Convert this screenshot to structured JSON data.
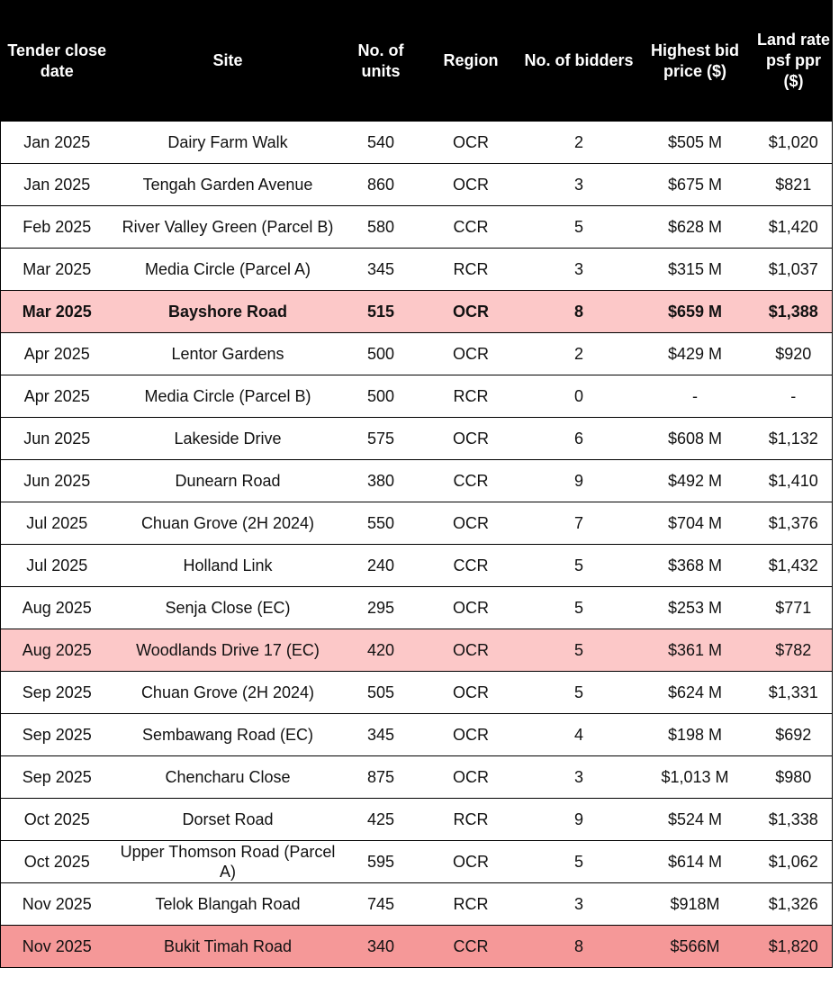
{
  "table": {
    "columns": [
      "Tender close date",
      "Site",
      "No. of units",
      "Region",
      "No. of bidders",
      "Highest bid price ($)",
      "Land rate psf ppr ($)"
    ],
    "rows": [
      [
        "Jan 2025",
        "Dairy Farm Walk",
        "540",
        "OCR",
        "2",
        "$505 M",
        "$1,020"
      ],
      [
        "Jan 2025",
        "Tengah Garden Avenue",
        "860",
        "OCR",
        "3",
        "$675 M",
        "$821"
      ],
      [
        "Feb 2025",
        "River Valley Green (Parcel B)",
        "580",
        "CCR",
        "5",
        "$628 M",
        "$1,420"
      ],
      [
        "Mar 2025",
        "Media Circle (Parcel A)",
        "345",
        "RCR",
        "3",
        "$315 M",
        "$1,037"
      ],
      [
        "Mar 2025",
        "Bayshore Road",
        "515",
        "OCR",
        "8",
        "$659 M",
        "$1,388"
      ],
      [
        "Apr 2025",
        "Lentor Gardens",
        "500",
        "OCR",
        "2",
        "$429 M",
        "$920"
      ],
      [
        "Apr 2025",
        "Media Circle (Parcel B)",
        "500",
        "RCR",
        "0",
        "-",
        "-"
      ],
      [
        "Jun 2025",
        "Lakeside Drive",
        "575",
        "OCR",
        "6",
        "$608 M",
        "$1,132"
      ],
      [
        "Jun 2025",
        "Dunearn Road",
        "380",
        "CCR",
        "9",
        "$492 M",
        "$1,410"
      ],
      [
        "Jul 2025",
        "Chuan Grove (2H 2024)",
        "550",
        "OCR",
        "7",
        "$704 M",
        "$1,376"
      ],
      [
        "Jul 2025",
        "Holland Link",
        "240",
        "CCR",
        "5",
        "$368 M",
        "$1,432"
      ],
      [
        "Aug 2025",
        "Senja Close (EC)",
        "295",
        "OCR",
        "5",
        "$253 M",
        "$771"
      ],
      [
        "Aug 2025",
        "Woodlands Drive 17 (EC)",
        "420",
        "OCR",
        "5",
        "$361 M",
        "$782"
      ],
      [
        "Sep 2025",
        "Chuan Grove (2H 2024)",
        "505",
        "OCR",
        "5",
        "$624 M",
        "$1,331"
      ],
      [
        "Sep 2025",
        "Sembawang Road (EC)",
        "345",
        "OCR",
        "4",
        "$198 M",
        "$692"
      ],
      [
        "Sep 2025",
        "Chencharu Close",
        "875",
        "OCR",
        "3",
        "$1,013 M",
        "$980"
      ],
      [
        "Oct 2025",
        "Dorset Road",
        "425",
        "RCR",
        "9",
        "$524 M",
        "$1,338"
      ],
      [
        "Oct 2025",
        "Upper Thomson Road (Parcel A)",
        "595",
        "OCR",
        "5",
        "$614 M",
        "$1,062"
      ],
      [
        "Nov 2025",
        "Telok Blangah Road",
        "745",
        "RCR",
        "3",
        "$918M",
        "$1,326"
      ],
      [
        "Nov 2025",
        "Bukit Timah Road",
        "340",
        "CCR",
        "8",
        "$566M",
        "$1,820"
      ]
    ]
  }
}
